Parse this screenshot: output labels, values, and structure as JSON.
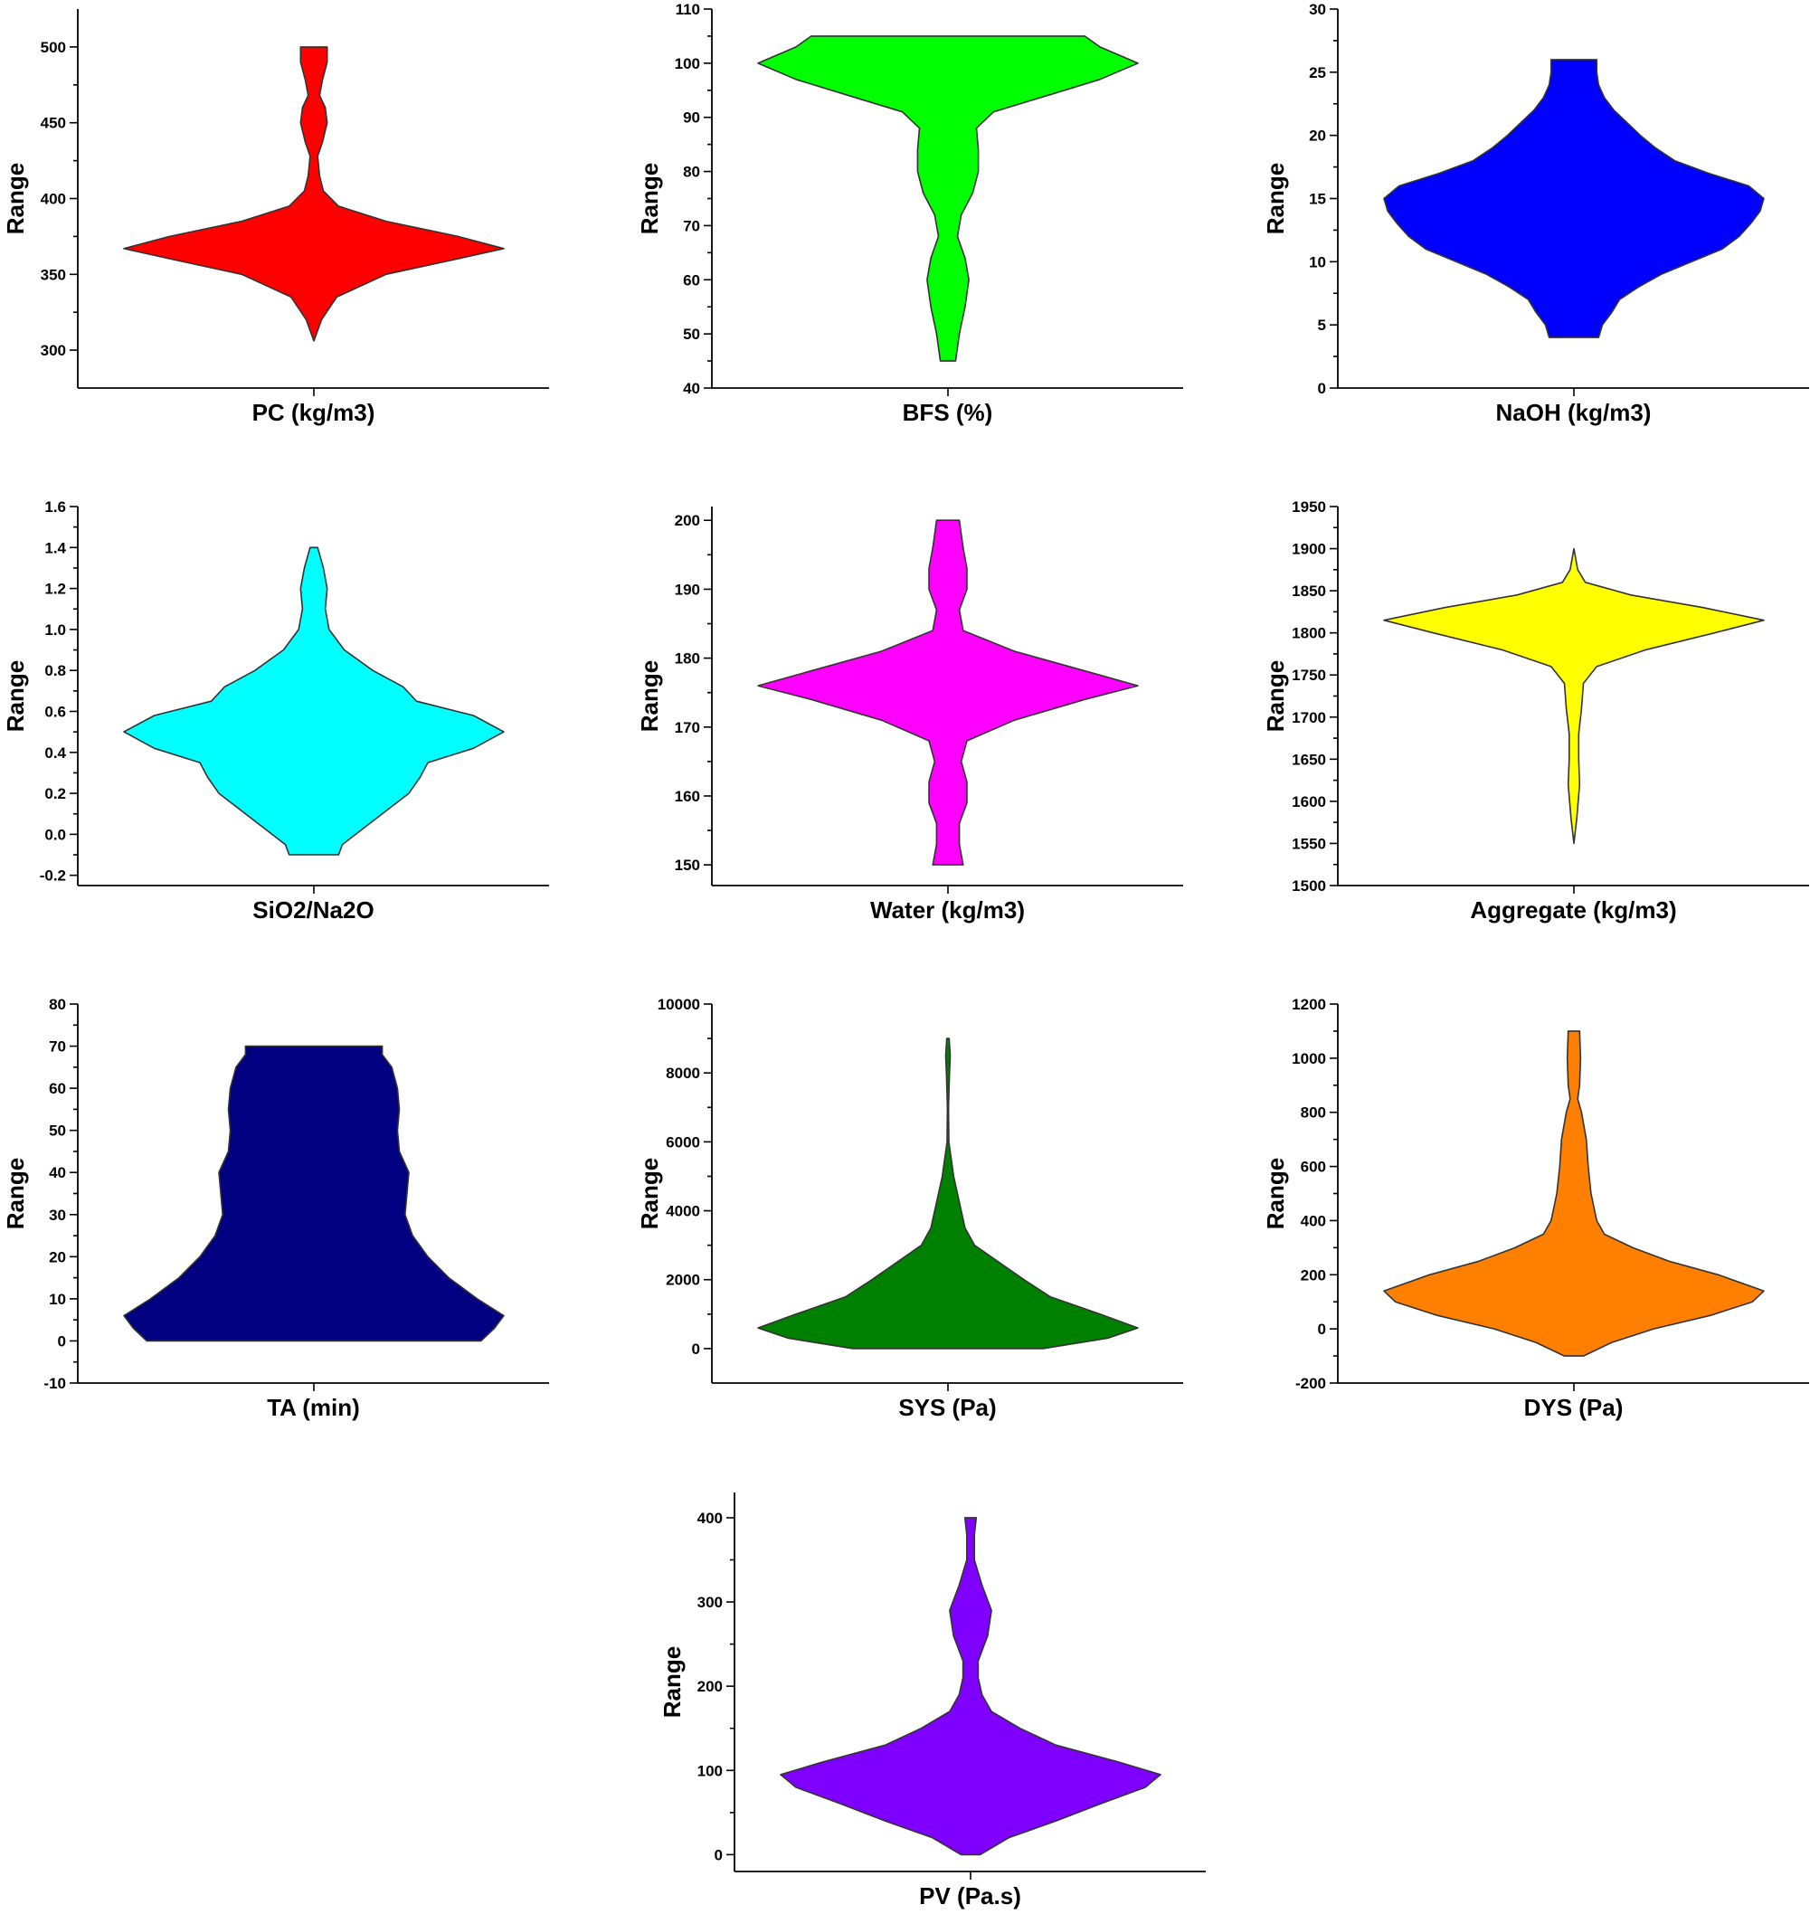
{
  "chart_data": [
    {
      "type": "violin",
      "xlabel": "PC (kg/m3)",
      "ylabel": "Range",
      "ylim": [
        275,
        525
      ],
      "major_ticks": [
        300,
        350,
        400,
        450,
        500
      ],
      "color": "#ff0000",
      "range": [
        306,
        500
      ],
      "density": [
        [
          306,
          0.0
        ],
        [
          320,
          0.04
        ],
        [
          335,
          0.12
        ],
        [
          350,
          0.38
        ],
        [
          360,
          0.75
        ],
        [
          367,
          1.0
        ],
        [
          375,
          0.76
        ],
        [
          385,
          0.38
        ],
        [
          395,
          0.13
        ],
        [
          405,
          0.05
        ],
        [
          415,
          0.03
        ],
        [
          428,
          0.02
        ],
        [
          437,
          0.045
        ],
        [
          450,
          0.07
        ],
        [
          460,
          0.06
        ],
        [
          468,
          0.03
        ],
        [
          478,
          0.045
        ],
        [
          490,
          0.07
        ],
        [
          500,
          0.07
        ]
      ]
    },
    {
      "type": "violin",
      "xlabel": "BFS (%)",
      "ylabel": "Range",
      "ylim": [
        40,
        110
      ],
      "major_ticks": [
        40,
        50,
        60,
        70,
        80,
        90,
        100,
        110
      ],
      "color": "#00ff00",
      "range": [
        45,
        105
      ],
      "density": [
        [
          45,
          0.04
        ],
        [
          50,
          0.06
        ],
        [
          55,
          0.09
        ],
        [
          60,
          0.11
        ],
        [
          64,
          0.09
        ],
        [
          68,
          0.05
        ],
        [
          72,
          0.07
        ],
        [
          76,
          0.13
        ],
        [
          80,
          0.16
        ],
        [
          84,
          0.16
        ],
        [
          88,
          0.15
        ],
        [
          91,
          0.24
        ],
        [
          94,
          0.52
        ],
        [
          97,
          0.8
        ],
        [
          100,
          1.0
        ],
        [
          103,
          0.8
        ],
        [
          105,
          0.72
        ]
      ]
    },
    {
      "type": "violin",
      "xlabel": "NaOH (kg/m3)",
      "ylabel": "Range",
      "ylim": [
        0,
        30
      ],
      "major_ticks": [
        0,
        5,
        10,
        15,
        20,
        25,
        30
      ],
      "color": "#0000ff",
      "range": [
        4,
        26
      ],
      "density": [
        [
          4,
          0.13
        ],
        [
          5,
          0.15
        ],
        [
          6,
          0.2
        ],
        [
          7,
          0.24
        ],
        [
          8,
          0.34
        ],
        [
          9,
          0.46
        ],
        [
          10,
          0.62
        ],
        [
          11,
          0.78
        ],
        [
          12,
          0.87
        ],
        [
          13,
          0.93
        ],
        [
          14,
          0.98
        ],
        [
          15,
          1.0
        ],
        [
          16,
          0.92
        ],
        [
          17,
          0.71
        ],
        [
          18,
          0.53
        ],
        [
          19,
          0.43
        ],
        [
          20,
          0.35
        ],
        [
          21,
          0.28
        ],
        [
          22,
          0.21
        ],
        [
          23,
          0.16
        ],
        [
          24,
          0.13
        ],
        [
          25,
          0.12
        ],
        [
          26,
          0.12
        ]
      ]
    },
    {
      "type": "violin",
      "xlabel": "SiO2/Na2O",
      "ylabel": "Range",
      "ylim": [
        -0.25,
        1.6
      ],
      "major_ticks": [
        -0.2,
        0.0,
        0.2,
        0.4,
        0.6,
        0.8,
        1.0,
        1.2,
        1.4,
        1.6
      ],
      "color": "#00ffff",
      "range": [
        -0.1,
        1.4
      ],
      "density": [
        [
          -0.1,
          0.13
        ],
        [
          -0.05,
          0.15
        ],
        [
          0.0,
          0.22
        ],
        [
          0.1,
          0.36
        ],
        [
          0.2,
          0.5
        ],
        [
          0.28,
          0.56
        ],
        [
          0.35,
          0.6
        ],
        [
          0.42,
          0.84
        ],
        [
          0.5,
          1.0
        ],
        [
          0.58,
          0.84
        ],
        [
          0.65,
          0.54
        ],
        [
          0.72,
          0.47
        ],
        [
          0.8,
          0.31
        ],
        [
          0.9,
          0.16
        ],
        [
          1.0,
          0.08
        ],
        [
          1.1,
          0.06
        ],
        [
          1.2,
          0.07
        ],
        [
          1.3,
          0.05
        ],
        [
          1.4,
          0.02
        ]
      ]
    },
    {
      "type": "violin",
      "xlabel": "Water (kg/m3)",
      "ylabel": "Range",
      "ylim": [
        147,
        202
      ],
      "major_ticks": [
        150,
        160,
        170,
        180,
        190,
        200
      ],
      "color": "#ff00ff",
      "range": [
        150,
        200
      ],
      "density": [
        [
          150,
          0.08
        ],
        [
          153,
          0.06
        ],
        [
          156,
          0.06
        ],
        [
          159,
          0.1
        ],
        [
          162,
          0.1
        ],
        [
          165,
          0.07
        ],
        [
          168,
          0.1
        ],
        [
          171,
          0.35
        ],
        [
          174,
          0.72
        ],
        [
          176,
          1.0
        ],
        [
          178,
          0.74
        ],
        [
          181,
          0.35
        ],
        [
          184,
          0.08
        ],
        [
          187,
          0.06
        ],
        [
          190,
          0.1
        ],
        [
          193,
          0.1
        ],
        [
          196,
          0.08
        ],
        [
          200,
          0.06
        ]
      ]
    },
    {
      "type": "violin",
      "xlabel": "Aggregate (kg/m3)",
      "ylabel": "Range",
      "ylim": [
        1500,
        1950
      ],
      "major_ticks": [
        1500,
        1550,
        1600,
        1650,
        1700,
        1750,
        1800,
        1850,
        1900,
        1950
      ],
      "color": "#ffff00",
      "range": [
        1550,
        1900
      ],
      "density": [
        [
          1550,
          0.0
        ],
        [
          1580,
          0.015
        ],
        [
          1620,
          0.03
        ],
        [
          1650,
          0.025
        ],
        [
          1680,
          0.025
        ],
        [
          1710,
          0.04
        ],
        [
          1740,
          0.05
        ],
        [
          1760,
          0.12
        ],
        [
          1780,
          0.38
        ],
        [
          1800,
          0.74
        ],
        [
          1815,
          1.0
        ],
        [
          1830,
          0.68
        ],
        [
          1845,
          0.3
        ],
        [
          1860,
          0.06
        ],
        [
          1875,
          0.02
        ],
        [
          1900,
          0.0
        ]
      ]
    },
    {
      "type": "violin",
      "xlabel": "TA (min)",
      "ylabel": "Range",
      "ylim": [
        -10,
        80
      ],
      "major_ticks": [
        -10,
        0,
        10,
        20,
        30,
        40,
        50,
        60,
        70,
        80
      ],
      "color": "#000080",
      "range": [
        0,
        70
      ],
      "density": [
        [
          0,
          0.88
        ],
        [
          3,
          0.95
        ],
        [
          6,
          1.0
        ],
        [
          10,
          0.86
        ],
        [
          15,
          0.71
        ],
        [
          20,
          0.6
        ],
        [
          25,
          0.52
        ],
        [
          30,
          0.48
        ],
        [
          35,
          0.49
        ],
        [
          40,
          0.5
        ],
        [
          45,
          0.45
        ],
        [
          50,
          0.44
        ],
        [
          55,
          0.45
        ],
        [
          60,
          0.44
        ],
        [
          65,
          0.41
        ],
        [
          68,
          0.36
        ],
        [
          70,
          0.36
        ]
      ]
    },
    {
      "type": "violin",
      "xlabel": "SYS (Pa)",
      "ylabel": "Range",
      "ylim": [
        -1000,
        10000
      ],
      "major_ticks": [
        0,
        2000,
        4000,
        6000,
        8000,
        10000
      ],
      "color": "#008000",
      "range": [
        0,
        9000
      ],
      "density": [
        [
          0,
          0.5
        ],
        [
          300,
          0.84
        ],
        [
          600,
          1.0
        ],
        [
          1000,
          0.8
        ],
        [
          1500,
          0.54
        ],
        [
          2000,
          0.4
        ],
        [
          2500,
          0.27
        ],
        [
          3000,
          0.14
        ],
        [
          3500,
          0.09
        ],
        [
          4000,
          0.07
        ],
        [
          4500,
          0.05
        ],
        [
          5000,
          0.03
        ],
        [
          6000,
          0.005
        ],
        [
          7000,
          0.003
        ],
        [
          8000,
          0.008
        ],
        [
          8500,
          0.012
        ],
        [
          9000,
          0.006
        ]
      ]
    },
    {
      "type": "violin",
      "xlabel": "DYS (Pa)",
      "ylabel": "Range",
      "ylim": [
        -200,
        1200
      ],
      "major_ticks": [
        -200,
        0,
        200,
        400,
        600,
        800,
        1000,
        1200
      ],
      "color": "#ff7f00",
      "range": [
        -100,
        1100
      ],
      "density": [
        [
          -100,
          0.05
        ],
        [
          -50,
          0.2
        ],
        [
          0,
          0.42
        ],
        [
          50,
          0.72
        ],
        [
          100,
          0.94
        ],
        [
          140,
          1.0
        ],
        [
          200,
          0.76
        ],
        [
          250,
          0.5
        ],
        [
          300,
          0.31
        ],
        [
          350,
          0.16
        ],
        [
          400,
          0.12
        ],
        [
          500,
          0.09
        ],
        [
          600,
          0.075
        ],
        [
          700,
          0.065
        ],
        [
          800,
          0.04
        ],
        [
          850,
          0.02
        ],
        [
          900,
          0.03
        ],
        [
          1000,
          0.035
        ],
        [
          1100,
          0.03
        ]
      ]
    },
    {
      "type": "violin",
      "xlabel": "PV (Pa.s)",
      "ylabel": "Range",
      "ylim": [
        -20,
        430
      ],
      "major_ticks": [
        0,
        100,
        200,
        300,
        400
      ],
      "color": "#7f00ff",
      "range": [
        0,
        400
      ],
      "density": [
        [
          0,
          0.05
        ],
        [
          20,
          0.2
        ],
        [
          40,
          0.45
        ],
        [
          60,
          0.68
        ],
        [
          80,
          0.92
        ],
        [
          95,
          1.0
        ],
        [
          110,
          0.78
        ],
        [
          130,
          0.45
        ],
        [
          150,
          0.26
        ],
        [
          170,
          0.11
        ],
        [
          190,
          0.06
        ],
        [
          210,
          0.04
        ],
        [
          230,
          0.04
        ],
        [
          260,
          0.09
        ],
        [
          290,
          0.11
        ],
        [
          320,
          0.06
        ],
        [
          350,
          0.02
        ],
        [
          380,
          0.02
        ],
        [
          400,
          0.03
        ]
      ]
    }
  ]
}
